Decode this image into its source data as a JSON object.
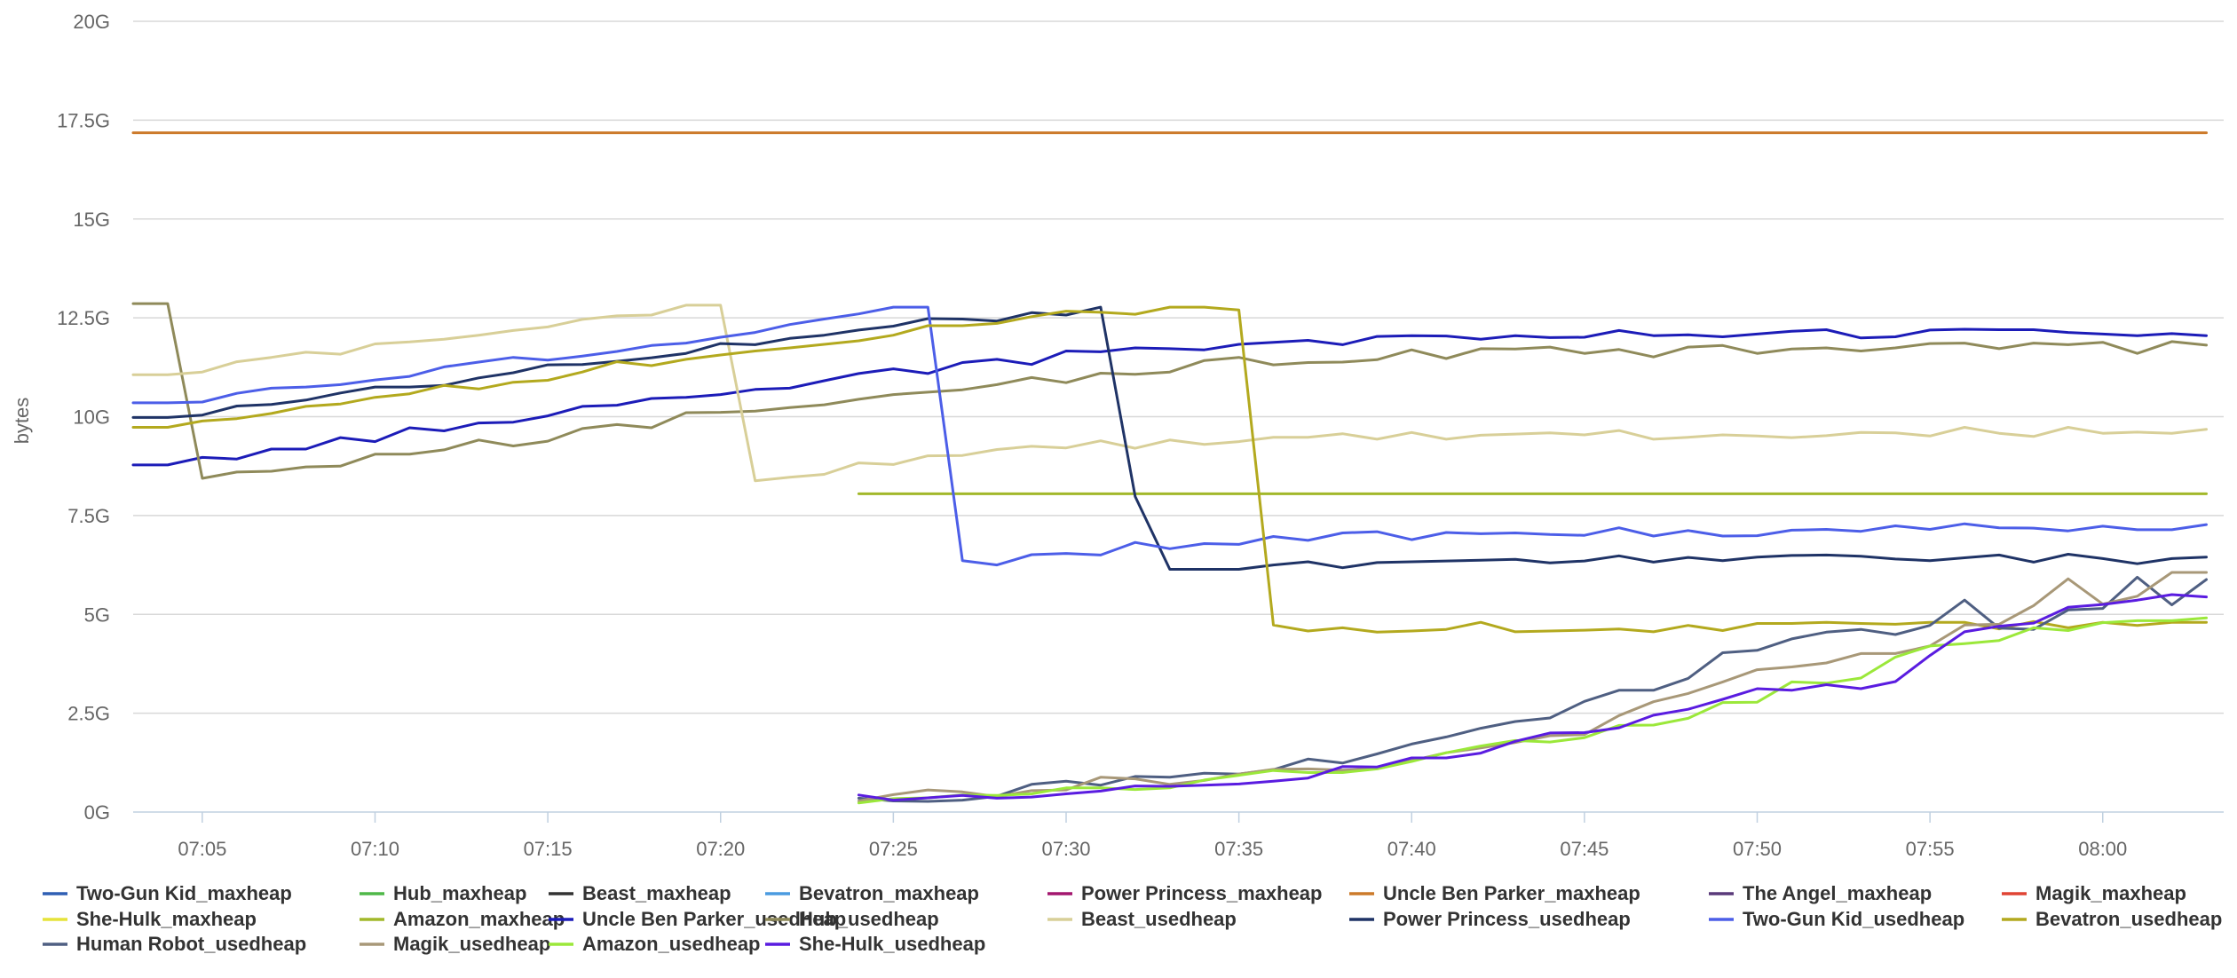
{
  "chart_data": {
    "type": "line",
    "title": "",
    "xlabel": "",
    "ylabel": "bytes",
    "ylim": [
      0,
      20
    ],
    "yunit": "G",
    "grid": true,
    "legend_position": "bottom",
    "y_ticks": [
      "0G",
      "2.5G",
      "5G",
      "7.5G",
      "10G",
      "12.5G",
      "15G",
      "17.5G",
      "20G"
    ],
    "x_ticks": [
      "07:05",
      "07:10",
      "07:15",
      "07:20",
      "07:25",
      "07:30",
      "07:35",
      "07:40",
      "07:45",
      "07:50",
      "07:55",
      "08:00"
    ],
    "x_tick_minutes": [
      5,
      10,
      15,
      20,
      25,
      30,
      35,
      40,
      45,
      50,
      55,
      60
    ],
    "x_start_minutes": 3,
    "series": [
      {
        "name": "Two-Gun Kid_maxheap",
        "color": "#2f5fb4",
        "values": []
      },
      {
        "name": "Hub_maxheap",
        "color": "#4fb848",
        "values": []
      },
      {
        "name": "Beast_maxheap",
        "color": "#333333",
        "values": []
      },
      {
        "name": "Bevatron_maxheap",
        "color": "#4a9be0",
        "values": []
      },
      {
        "name": "Power Princess_maxheap",
        "color": "#a3166f",
        "values": []
      },
      {
        "name": "Uncle Ben Parker_maxheap",
        "color": "#cc7a2a",
        "values": [
          17.18,
          17.18,
          17.18,
          17.18,
          17.18,
          17.18,
          17.18,
          17.18,
          17.18,
          17.18,
          17.18,
          17.18,
          17.18,
          17.18,
          17.18,
          17.18,
          17.18,
          17.18,
          17.18,
          17.18,
          17.18,
          17.18,
          17.18,
          17.18,
          17.18,
          17.18,
          17.18,
          17.18,
          17.18,
          17.18,
          17.18,
          17.18,
          17.18,
          17.18,
          17.18,
          17.18,
          17.18,
          17.18,
          17.18,
          17.18,
          17.18,
          17.18,
          17.18,
          17.18,
          17.18,
          17.18,
          17.18,
          17.18,
          17.18,
          17.18,
          17.18,
          17.18,
          17.18,
          17.18,
          17.18,
          17.18,
          17.18,
          17.18,
          17.18,
          17.18,
          17.18
        ]
      },
      {
        "name": "The Angel_maxheap",
        "color": "#5a3a7a",
        "values": []
      },
      {
        "name": "Magik_maxheap",
        "color": "#e04434",
        "values": []
      },
      {
        "name": "She-Hulk_maxheap",
        "color": "#e6e33a",
        "values": []
      },
      {
        "name": "Amazon_maxheap",
        "color": "#a2b82a",
        "values": [
          null,
          null,
          null,
          null,
          null,
          null,
          null,
          null,
          null,
          null,
          null,
          null,
          null,
          null,
          null,
          null,
          null,
          null,
          null,
          null,
          null,
          8.05,
          8.05,
          8.05,
          8.05,
          8.05,
          8.05,
          8.05,
          8.05,
          8.05,
          8.05,
          8.05,
          8.05,
          8.05,
          8.05,
          8.05,
          8.05,
          8.05,
          8.05,
          8.05,
          8.05,
          8.05,
          8.05,
          8.05,
          8.05,
          8.05,
          8.05,
          8.05,
          8.05,
          8.05,
          8.05,
          8.05,
          8.05,
          8.05,
          8.05,
          8.05,
          8.05,
          8.05,
          8.05,
          8.05,
          8.05
        ]
      },
      {
        "name": "Uncle Ben Parker_usedheap",
        "color": "#1c1cb8",
        "values": [
          8.78,
          8.78,
          8.97,
          8.93,
          9.18,
          9.18,
          9.47,
          9.37,
          9.72,
          9.64,
          9.84,
          9.86,
          10.02,
          10.26,
          10.29,
          10.46,
          10.49,
          10.56,
          10.69,
          10.72,
          10.91,
          11.09,
          11.21,
          11.09,
          11.37,
          11.45,
          11.32,
          11.66,
          11.64,
          11.74,
          11.72,
          11.69,
          11.83,
          11.88,
          11.93,
          11.82,
          12.03,
          12.05,
          12.04,
          11.96,
          12.05,
          12.0,
          12.01,
          12.18,
          12.05,
          12.07,
          12.02,
          12.09,
          12.16,
          12.2,
          11.99,
          12.02,
          12.19,
          12.21,
          12.2,
          12.2,
          12.13,
          12.09,
          12.05,
          12.1,
          12.05
        ]
      },
      {
        "name": "Hub_usedheap",
        "color": "#8f8a5a",
        "values": [
          12.86,
          12.86,
          8.44,
          8.6,
          8.62,
          8.73,
          8.75,
          9.05,
          9.05,
          9.16,
          9.41,
          9.26,
          9.38,
          9.7,
          9.8,
          9.72,
          10.1,
          10.11,
          10.14,
          10.23,
          10.3,
          10.44,
          10.56,
          10.62,
          10.68,
          10.81,
          10.99,
          10.86,
          11.1,
          11.07,
          11.13,
          11.42,
          11.5,
          11.31,
          11.37,
          11.38,
          11.44,
          11.69,
          11.47,
          11.72,
          11.71,
          11.76,
          11.6,
          11.7,
          11.51,
          11.76,
          11.8,
          11.6,
          11.71,
          11.74,
          11.66,
          11.74,
          11.85,
          11.86,
          11.72,
          11.86,
          11.82,
          11.88,
          11.6,
          11.9,
          11.81
        ]
      },
      {
        "name": "Beast_usedheap",
        "color": "#d8cf98",
        "values": [
          11.06,
          11.06,
          11.13,
          11.39,
          11.5,
          11.63,
          11.58,
          11.84,
          11.89,
          11.96,
          12.06,
          12.18,
          12.27,
          12.46,
          12.55,
          12.57,
          12.82,
          12.82,
          8.38,
          8.47,
          8.54,
          8.83,
          8.79,
          9.01,
          9.02,
          9.17,
          9.25,
          9.21,
          9.39,
          9.2,
          9.41,
          9.3,
          9.37,
          9.48,
          9.48,
          9.57,
          9.43,
          9.6,
          9.43,
          9.53,
          9.56,
          9.59,
          9.54,
          9.65,
          9.43,
          9.48,
          9.54,
          9.51,
          9.47,
          9.52,
          9.6,
          9.59,
          9.51,
          9.73,
          9.58,
          9.5,
          9.73,
          9.58,
          9.61,
          9.58,
          9.68
        ]
      },
      {
        "name": "Power Princess_usedheap",
        "color": "#1f3366",
        "values": [
          9.98,
          9.98,
          10.04,
          10.27,
          10.31,
          10.42,
          10.6,
          10.75,
          10.75,
          10.79,
          10.98,
          11.11,
          11.31,
          11.32,
          11.4,
          11.49,
          11.6,
          11.85,
          11.82,
          11.98,
          12.06,
          12.19,
          12.29,
          12.48,
          12.47,
          12.42,
          12.63,
          12.57,
          12.77,
          7.98,
          6.14,
          6.14,
          6.14,
          6.25,
          6.33,
          6.18,
          6.31,
          6.33,
          6.35,
          6.37,
          6.39,
          6.3,
          6.35,
          6.48,
          6.32,
          6.44,
          6.36,
          6.45,
          6.49,
          6.5,
          6.47,
          6.4,
          6.36,
          6.43,
          6.5,
          6.32,
          6.52,
          6.41,
          6.28,
          6.41,
          6.45
        ]
      },
      {
        "name": "Two-Gun Kid_usedheap",
        "color": "#4c5ee8",
        "values": [
          10.35,
          10.35,
          10.37,
          10.59,
          10.72,
          10.75,
          10.81,
          10.93,
          11.02,
          11.26,
          11.38,
          11.5,
          11.43,
          11.53,
          11.65,
          11.8,
          11.86,
          12.01,
          12.13,
          12.33,
          12.47,
          12.6,
          12.77,
          12.77,
          6.36,
          6.25,
          6.51,
          6.54,
          6.5,
          6.82,
          6.66,
          6.79,
          6.77,
          6.97,
          6.87,
          7.06,
          7.09,
          6.89,
          7.07,
          7.04,
          7.06,
          7.02,
          7.0,
          7.19,
          6.98,
          7.12,
          6.98,
          6.99,
          7.13,
          7.15,
          7.1,
          7.24,
          7.15,
          7.29,
          7.19,
          7.18,
          7.11,
          7.23,
          7.14,
          7.14,
          7.27
        ]
      },
      {
        "name": "Bevatron_usedheap",
        "color": "#b3a91e",
        "values": [
          9.73,
          9.73,
          9.89,
          9.95,
          10.08,
          10.26,
          10.32,
          10.49,
          10.58,
          10.79,
          10.7,
          10.87,
          10.92,
          11.13,
          11.39,
          11.29,
          11.45,
          11.56,
          11.66,
          11.74,
          11.83,
          11.92,
          12.06,
          12.3,
          12.3,
          12.36,
          12.53,
          12.67,
          12.64,
          12.59,
          12.77,
          12.77,
          12.7,
          4.73,
          4.58,
          4.66,
          4.55,
          4.58,
          4.62,
          4.8,
          4.56,
          4.58,
          4.6,
          4.63,
          4.56,
          4.72,
          4.59,
          4.77,
          4.77,
          4.8,
          4.77,
          4.75,
          4.8,
          4.8,
          4.63,
          4.82,
          4.66,
          4.8,
          4.72,
          4.8,
          4.8
        ]
      },
      {
        "name": "Human Robot_usedheap",
        "color": "#4f5f82",
        "values": [
          null,
          null,
          null,
          null,
          null,
          null,
          null,
          null,
          null,
          null,
          null,
          null,
          null,
          null,
          null,
          null,
          null,
          null,
          null,
          null,
          null,
          0.35,
          0.28,
          0.27,
          0.3,
          0.4,
          0.7,
          0.78,
          0.68,
          0.9,
          0.88,
          0.98,
          0.96,
          1.07,
          1.34,
          1.24,
          1.47,
          1.72,
          1.9,
          2.12,
          2.29,
          2.38,
          2.8,
          3.08,
          3.08,
          3.38,
          4.03,
          4.09,
          4.38,
          4.55,
          4.62,
          4.49,
          4.72,
          5.36,
          4.65,
          4.62,
          5.11,
          5.15,
          5.94,
          5.24,
          5.88
        ]
      },
      {
        "name": "Magik_usedheap",
        "color": "#a89878",
        "values": [
          null,
          null,
          null,
          null,
          null,
          null,
          null,
          null,
          null,
          null,
          null,
          null,
          null,
          null,
          null,
          null,
          null,
          null,
          null,
          null,
          null,
          0.28,
          0.44,
          0.56,
          0.51,
          0.39,
          0.54,
          0.56,
          0.88,
          0.84,
          0.7,
          0.8,
          0.96,
          1.08,
          1.09,
          1.06,
          1.1,
          1.3,
          1.5,
          1.62,
          1.76,
          1.93,
          1.96,
          2.44,
          2.79,
          3.0,
          3.29,
          3.6,
          3.67,
          3.77,
          4.01,
          4.01,
          4.2,
          4.73,
          4.75,
          5.22,
          5.9,
          5.26,
          5.46,
          6.06,
          6.06
        ]
      },
      {
        "name": "Amazon_usedheap",
        "color": "#9be83a",
        "values": [
          null,
          null,
          null,
          null,
          null,
          null,
          null,
          null,
          null,
          null,
          null,
          null,
          null,
          null,
          null,
          null,
          null,
          null,
          null,
          null,
          null,
          0.23,
          0.34,
          0.36,
          0.43,
          0.42,
          0.46,
          0.61,
          0.61,
          0.57,
          0.61,
          0.81,
          0.93,
          1.05,
          1.0,
          1.0,
          1.09,
          1.28,
          1.5,
          1.67,
          1.81,
          1.77,
          1.88,
          2.19,
          2.2,
          2.37,
          2.77,
          2.78,
          3.29,
          3.26,
          3.39,
          3.92,
          4.2,
          4.26,
          4.34,
          4.66,
          4.59,
          4.79,
          4.84,
          4.84,
          4.91
        ]
      },
      {
        "name": "She-Hulk_usedheap",
        "color": "#5a1ce0",
        "values": [
          null,
          null,
          null,
          null,
          null,
          null,
          null,
          null,
          null,
          null,
          null,
          null,
          null,
          null,
          null,
          null,
          null,
          null,
          null,
          null,
          null,
          0.43,
          0.3,
          0.36,
          0.42,
          0.35,
          0.38,
          0.46,
          0.53,
          0.66,
          0.65,
          0.68,
          0.71,
          0.78,
          0.86,
          1.15,
          1.14,
          1.37,
          1.37,
          1.49,
          1.79,
          2.0,
          2.01,
          2.13,
          2.45,
          2.6,
          2.85,
          3.12,
          3.08,
          3.22,
          3.12,
          3.3,
          3.96,
          4.56,
          4.7,
          4.78,
          5.18,
          5.25,
          5.36,
          5.5,
          5.44
        ]
      }
    ]
  }
}
